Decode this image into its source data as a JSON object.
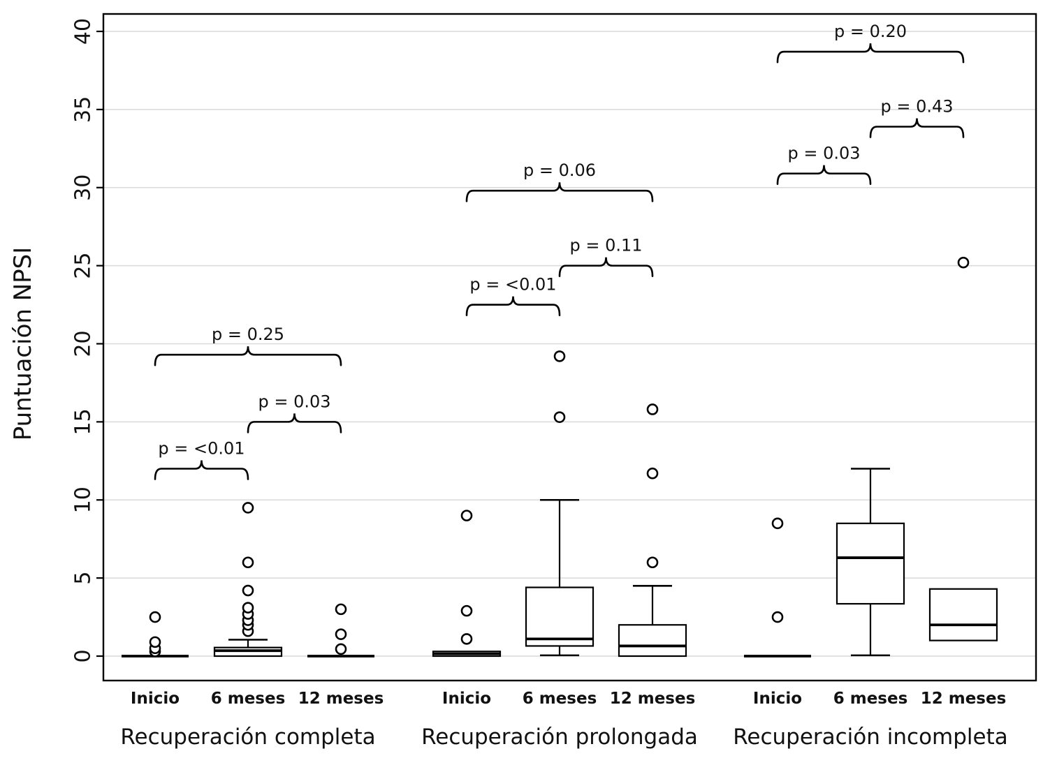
{
  "chart_data": {
    "type": "box",
    "title": "",
    "ylabel": "Puntuación NPSI",
    "xlabel": "",
    "ylim": [
      0,
      40
    ],
    "yticks": [
      0,
      5,
      10,
      15,
      20,
      25,
      30,
      35,
      40
    ],
    "grid": true,
    "legend": "none",
    "colors": {
      "box_stroke": "#000000",
      "box_fill": "#ffffff",
      "grid": "#d9d9d9",
      "frame": "#000000",
      "text": "#111111"
    },
    "groups": [
      {
        "label": "Recuperación completa",
        "boxes": [
          {
            "label": "Inicio",
            "low": 0,
            "q1": 0,
            "median": 0,
            "q3": 0,
            "high": 0,
            "outliers": [
              0.3,
              0.5,
              0.9,
              2.5
            ]
          },
          {
            "label": "6 meses",
            "low": 0,
            "q1": 0,
            "median": 0.35,
            "q3": 0.55,
            "high": 1.05,
            "outliers": [
              1.6,
              2.0,
              2.3,
              2.7,
              3.1,
              4.2,
              6.0,
              9.5
            ]
          },
          {
            "label": "12 meses",
            "low": 0,
            "q1": 0,
            "median": 0,
            "q3": 0,
            "high": 0,
            "outliers": [
              0.45,
              1.4,
              3.0
            ]
          }
        ],
        "comparisons": [
          {
            "from": 0,
            "to": 1,
            "label": "p = <0.01",
            "y": 12.0
          },
          {
            "from": 1,
            "to": 2,
            "label": "p = 0.03",
            "y": 15.0
          },
          {
            "from": 0,
            "to": 2,
            "label": "p = 0.25",
            "y": 19.3
          }
        ]
      },
      {
        "label": "Recuperación prolongada",
        "boxes": [
          {
            "label": "Inicio",
            "low": 0,
            "q1": 0,
            "median": 0.15,
            "q3": 0.3,
            "high": 0.3,
            "outliers": [
              1.1,
              2.9,
              9.0
            ]
          },
          {
            "label": "6 meses",
            "low": 0.05,
            "q1": 0.65,
            "median": 1.1,
            "q3": 4.4,
            "high": 10.0,
            "outliers": [
              15.3,
              19.2
            ]
          },
          {
            "label": "12 meses",
            "low": 0,
            "q1": 0,
            "median": 0.65,
            "q3": 2.0,
            "high": 4.5,
            "outliers": [
              6.0,
              11.7,
              15.8
            ]
          }
        ],
        "comparisons": [
          {
            "from": 0,
            "to": 1,
            "label": "p = <0.01",
            "y": 22.5
          },
          {
            "from": 1,
            "to": 2,
            "label": "p = 0.11",
            "y": 25.0
          },
          {
            "from": 0,
            "to": 2,
            "label": "p = 0.06",
            "y": 29.8
          }
        ]
      },
      {
        "label": "Recuperación incompleta",
        "boxes": [
          {
            "label": "Inicio",
            "low": 0,
            "q1": 0,
            "median": 0,
            "q3": 0,
            "high": 0,
            "outliers": [
              2.5,
              8.5
            ]
          },
          {
            "label": "6 meses",
            "low": 0.05,
            "q1": 3.35,
            "median": 6.3,
            "q3": 8.5,
            "high": 12.0,
            "outliers": []
          },
          {
            "label": "12 meses",
            "low": 1.0,
            "q1": 1.0,
            "median": 2.0,
            "q3": 4.3,
            "high": 4.3,
            "outliers": [
              25.2
            ]
          }
        ],
        "comparisons": [
          {
            "from": 0,
            "to": 1,
            "label": "p = 0.03",
            "y": 30.9
          },
          {
            "from": 1,
            "to": 2,
            "label": "p = 0.43",
            "y": 33.9
          },
          {
            "from": 0,
            "to": 2,
            "label": "p = 0.20",
            "y": 38.7
          }
        ]
      }
    ]
  }
}
